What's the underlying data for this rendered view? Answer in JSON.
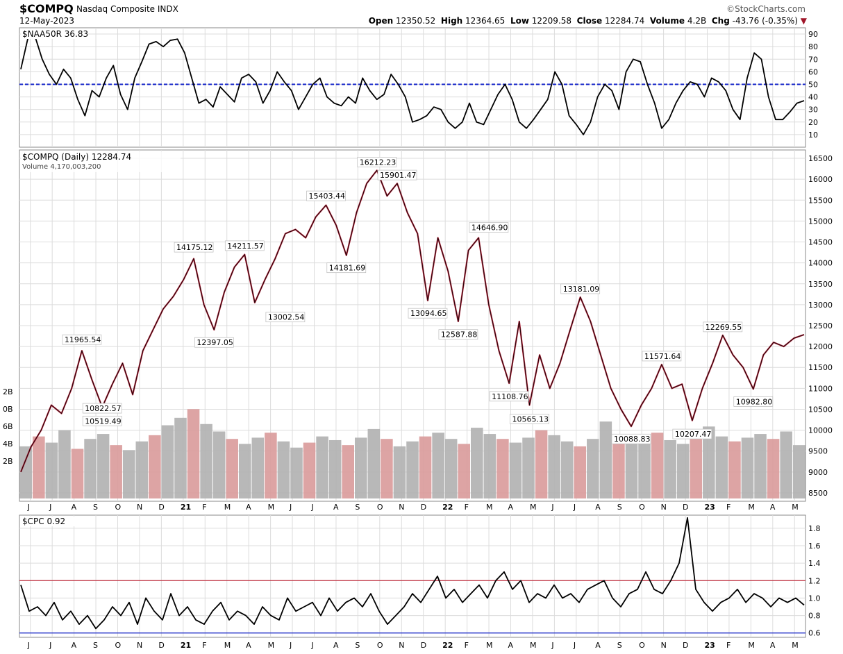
{
  "header": {
    "symbol": "$COMPQ",
    "name": "Nasdaq Composite INDX",
    "date": "12-May-2023",
    "brand": "©StockCharts.com",
    "open_label": "Open",
    "open": "12350.52",
    "high_label": "High",
    "high": "12364.65",
    "low_label": "Low",
    "low": "12209.58",
    "close_label": "Close",
    "close": "12284.74",
    "volume_label": "Volume",
    "volume": "4.2B",
    "chg_label": "Chg",
    "chg": "-43.76 (-0.35%)",
    "chg_arrow": "▼"
  },
  "colors": {
    "up": "#000000",
    "down": "#b3263c",
    "vol_up": "#b0b0b0",
    "vol_down": "#d99a9a",
    "ref_blue": "#1020c8",
    "ref_red": "#c03040"
  },
  "chart_data": [
    {
      "type": "line",
      "title": "$NAA50R 36.83",
      "ylim": [
        0,
        95
      ],
      "yticks": [
        "90",
        "80",
        "70",
        "60",
        "50",
        "40",
        "30",
        "20",
        "10"
      ],
      "reference_line": {
        "value": 50,
        "style": "dashed",
        "color": "blue"
      },
      "series": [
        {
          "name": "$NAA50R",
          "values": [
            62,
            87,
            88,
            70,
            58,
            50,
            62,
            55,
            38,
            25,
            45,
            40,
            55,
            65,
            42,
            30,
            55,
            68,
            82,
            84,
            80,
            85,
            86,
            75,
            55,
            35,
            38,
            32,
            48,
            42,
            36,
            55,
            58,
            52,
            35,
            45,
            60,
            52,
            45,
            30,
            40,
            50,
            55,
            40,
            35,
            33,
            40,
            35,
            55,
            45,
            38,
            42,
            58,
            50,
            40,
            20,
            22,
            25,
            32,
            30,
            20,
            15,
            20,
            35,
            20,
            18,
            30,
            42,
            50,
            38,
            20,
            15,
            22,
            30,
            38,
            60,
            50,
            25,
            18,
            10,
            20,
            40,
            50,
            45,
            30,
            60,
            70,
            68,
            50,
            35,
            15,
            22,
            35,
            45,
            52,
            50,
            40,
            55,
            52,
            45,
            30,
            22,
            55,
            75,
            70,
            40,
            22,
            22,
            28,
            35,
            37
          ]
        }
      ]
    },
    {
      "type": "line",
      "title": "$COMPQ (Daily) 12284.74",
      "subtitle": "Volume 4,170,003,200",
      "ylim": [
        8300,
        16700
      ],
      "yticks": [
        "16500",
        "16000",
        "15500",
        "15000",
        "14500",
        "14000",
        "13500",
        "13000",
        "12500",
        "12000",
        "11500",
        "11000",
        "10500",
        "10000",
        "9500",
        "9000",
        "8500"
      ],
      "xticks": [
        "J",
        "J",
        "A",
        "S",
        "O",
        "N",
        "D",
        "21",
        "F",
        "M",
        "A",
        "M",
        "J",
        "J",
        "A",
        "S",
        "O",
        "N",
        "D",
        "22",
        "F",
        "M",
        "A",
        "M",
        "J",
        "J",
        "A",
        "S",
        "O",
        "N",
        "D",
        "23",
        "F",
        "M",
        "A",
        "M"
      ],
      "series": [
        {
          "name": "$COMPQ",
          "values": [
            9000,
            9600,
            10000,
            10600,
            10400,
            11000,
            11900,
            11200,
            10550,
            11100,
            11600,
            10850,
            11900,
            12400,
            12900,
            13200,
            13600,
            14100,
            13000,
            12400,
            13300,
            13900,
            14200,
            13050,
            13600,
            14100,
            14700,
            14800,
            14600,
            15100,
            15380,
            14900,
            14180,
            15200,
            15900,
            16212,
            15600,
            15900,
            15200,
            14700,
            13100,
            14600,
            13800,
            12600,
            14300,
            14600,
            13000,
            11900,
            11120,
            12600,
            10600,
            11800,
            11000,
            11600,
            12400,
            13181,
            12600,
            11800,
            11000,
            10500,
            10090,
            10600,
            11000,
            11571,
            11000,
            11100,
            10230,
            11000,
            11600,
            12270,
            11800,
            11500,
            10983,
            11800,
            12100,
            12000,
            12200,
            12285
          ]
        }
      ],
      "annotations": [
        "16212.23",
        "15901.47",
        "15403.44",
        "14646.90",
        "14175.12",
        "14211.57",
        "14181.69",
        "13181.09",
        "13094.65",
        "13002.54",
        "12587.88",
        "12397.05",
        "12269.55",
        "11965.54",
        "11571.64",
        "11108.76",
        "10982.80",
        "10822.57",
        "10565.13",
        "10519.49",
        "10207.47",
        "10088.83"
      ],
      "volume": {
        "axis_labels": [
          "2B",
          "0B",
          "6B",
          "4B",
          "2B"
        ],
        "values_billion": [
          4.2,
          5.0,
          4.5,
          5.5,
          4.0,
          4.8,
          5.2,
          4.3,
          3.9,
          4.6,
          5.1,
          5.9,
          6.5,
          7.2,
          6.0,
          5.4,
          4.8,
          4.4,
          4.9,
          5.3,
          4.6,
          4.1,
          4.5,
          5.0,
          4.7,
          4.3,
          4.9,
          5.6,
          4.8,
          4.2,
          4.6,
          5.0,
          5.3,
          4.8,
          4.4,
          5.7,
          5.2,
          4.8,
          4.5,
          4.9,
          5.5,
          5.1,
          4.6,
          4.2,
          4.8,
          6.2,
          5.0,
          4.6,
          4.9,
          5.3,
          4.7,
          4.4,
          5.1,
          5.8,
          5.0,
          4.6,
          4.9,
          5.2,
          4.8,
          5.4,
          4.3
        ]
      }
    },
    {
      "type": "line",
      "title": "$CPC 0.92",
      "ylim": [
        0.55,
        1.95
      ],
      "yticks": [
        "1.8",
        "1.6",
        "1.4",
        "1.2",
        "1.0",
        "0.8",
        "0.6"
      ],
      "reference_lines": [
        {
          "value": 1.2,
          "color": "red"
        },
        {
          "value": 0.6,
          "color": "blue"
        }
      ],
      "series": [
        {
          "name": "$CPC",
          "values": [
            1.15,
            0.85,
            0.9,
            0.8,
            0.95,
            0.75,
            0.85,
            0.7,
            0.8,
            0.65,
            0.75,
            0.9,
            0.8,
            0.95,
            0.7,
            1.0,
            0.85,
            0.75,
            1.05,
            0.8,
            0.9,
            0.75,
            0.7,
            0.85,
            0.95,
            0.75,
            0.85,
            0.8,
            0.7,
            0.9,
            0.8,
            0.75,
            1.0,
            0.85,
            0.9,
            0.95,
            0.8,
            1.0,
            0.85,
            0.95,
            1.0,
            0.9,
            1.05,
            0.85,
            0.7,
            0.8,
            0.9,
            1.05,
            0.95,
            1.1,
            1.25,
            1.0,
            1.1,
            0.95,
            1.05,
            1.15,
            1.0,
            1.2,
            1.3,
            1.1,
            1.2,
            0.95,
            1.05,
            1.0,
            1.15,
            1.0,
            1.05,
            0.95,
            1.1,
            1.15,
            1.2,
            1.0,
            0.9,
            1.05,
            1.1,
            1.3,
            1.1,
            1.05,
            1.2,
            1.4,
            1.92,
            1.1,
            0.95,
            0.85,
            0.95,
            1.0,
            1.1,
            0.95,
            1.05,
            1.0,
            0.9,
            1.0,
            0.95,
            1.0,
            0.92
          ]
        }
      ]
    }
  ]
}
